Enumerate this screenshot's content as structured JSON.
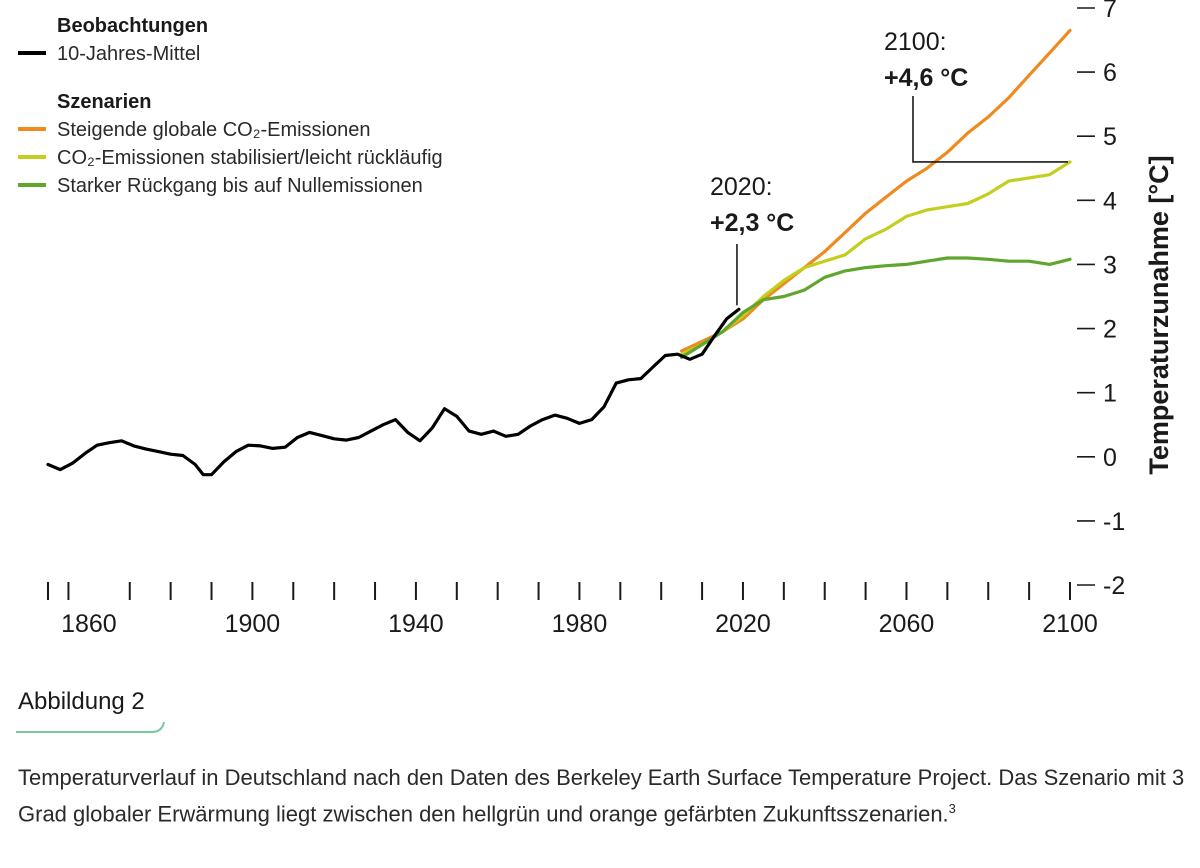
{
  "chart_data": {
    "type": "line",
    "xlabel": "",
    "ylabel": "Temperaturzunahme [°C]",
    "xlim": [
      1850,
      2100
    ],
    "ylim": [
      -2,
      7
    ],
    "x_ticks": [
      1850,
      1855,
      1870,
      1880,
      1890,
      1900,
      1910,
      1920,
      1930,
      1940,
      1950,
      1960,
      1970,
      1980,
      1990,
      2000,
      2010,
      2020,
      2030,
      2040,
      2050,
      2060,
      2070,
      2080,
      2090,
      2100
    ],
    "x_tick_labels": [
      {
        "x": 1860,
        "label": "1860"
      },
      {
        "x": 1900,
        "label": "1900"
      },
      {
        "x": 1940,
        "label": "1940"
      },
      {
        "x": 1980,
        "label": "1980"
      },
      {
        "x": 2020,
        "label": "2020"
      },
      {
        "x": 2060,
        "label": "2060"
      },
      {
        "x": 2100,
        "label": "2100"
      }
    ],
    "y_ticks": [
      {
        "y": 7,
        "label": "7"
      },
      {
        "y": 6,
        "label": "6"
      },
      {
        "y": 5,
        "label": "5"
      },
      {
        "y": 4,
        "label": "4"
      },
      {
        "y": 3,
        "label": "3"
      },
      {
        "y": 2,
        "label": "2"
      },
      {
        "y": 1,
        "label": "1"
      },
      {
        "y": 0,
        "label": "0"
      },
      {
        "y": -1,
        "label": "-1"
      },
      {
        "y": -2,
        "label": "-2"
      }
    ],
    "legend": {
      "position": "top-left",
      "groups": [
        {
          "title": "Beobachtungen",
          "entries": [
            {
              "label": "10-Jahres-Mittel",
              "color": "#000000"
            }
          ]
        },
        {
          "title": "Szenarien",
          "entries": [
            {
              "label": "Steigende globale CO₂-Emissionen",
              "color": "#ef8a1f"
            },
            {
              "label": "CO₂-Emissionen stabilisiert/leicht rückläufig",
              "color": "#c3cf1e"
            },
            {
              "label": "Starker Rückgang bis auf Nullemissionen",
              "color": "#5fa62e"
            }
          ]
        }
      ]
    },
    "series": [
      {
        "name": "10-Jahres-Mittel",
        "color": "#000000",
        "x": [
          1850,
          1853,
          1856,
          1859,
          1862,
          1865,
          1868,
          1871,
          1874,
          1877,
          1880,
          1883,
          1886,
          1888,
          1890,
          1893,
          1896,
          1899,
          1902,
          1905,
          1908,
          1911,
          1914,
          1917,
          1920,
          1923,
          1926,
          1929,
          1932,
          1935,
          1938,
          1941,
          1944,
          1947,
          1950,
          1953,
          1956,
          1959,
          1962,
          1965,
          1968,
          1971,
          1974,
          1977,
          1980,
          1983,
          1986,
          1989,
          1992,
          1995,
          1998,
          2001,
          2004,
          2007,
          2010,
          2013,
          2016,
          2019
        ],
        "y": [
          -0.12,
          -0.2,
          -0.1,
          0.05,
          0.18,
          0.22,
          0.25,
          0.17,
          0.12,
          0.08,
          0.04,
          0.02,
          -0.12,
          -0.28,
          -0.28,
          -0.08,
          0.08,
          0.18,
          0.17,
          0.13,
          0.15,
          0.3,
          0.38,
          0.33,
          0.28,
          0.26,
          0.3,
          0.4,
          0.5,
          0.58,
          0.38,
          0.25,
          0.45,
          0.75,
          0.63,
          0.4,
          0.35,
          0.4,
          0.32,
          0.35,
          0.48,
          0.58,
          0.65,
          0.6,
          0.52,
          0.58,
          0.78,
          1.15,
          1.2,
          1.22,
          1.4,
          1.58,
          1.6,
          1.52,
          1.6,
          1.88,
          2.15,
          2.3
        ]
      },
      {
        "name": "Steigende globale CO₂-Emissionen",
        "color": "#ef8a1f",
        "x": [
          2005,
          2010,
          2015,
          2020,
          2025,
          2030,
          2035,
          2040,
          2045,
          2050,
          2055,
          2060,
          2065,
          2070,
          2075,
          2080,
          2085,
          2090,
          2095,
          2100
        ],
        "y": [
          1.65,
          1.8,
          1.95,
          2.15,
          2.45,
          2.7,
          2.95,
          3.2,
          3.5,
          3.8,
          4.05,
          4.3,
          4.5,
          4.75,
          5.05,
          5.3,
          5.6,
          5.95,
          6.3,
          6.65
        ]
      },
      {
        "name": "CO₂-Emissionen stabilisiert/leicht rückläufig",
        "color": "#c3cf1e",
        "x": [
          2005,
          2010,
          2015,
          2020,
          2025,
          2030,
          2035,
          2040,
          2045,
          2050,
          2055,
          2060,
          2065,
          2070,
          2075,
          2080,
          2085,
          2090,
          2095,
          2100
        ],
        "y": [
          1.6,
          1.75,
          1.95,
          2.2,
          2.5,
          2.75,
          2.95,
          3.05,
          3.15,
          3.4,
          3.55,
          3.75,
          3.85,
          3.9,
          3.95,
          4.1,
          4.3,
          4.35,
          4.4,
          4.6
        ]
      },
      {
        "name": "Starker Rückgang bis auf Nullemissionen",
        "color": "#5fa62e",
        "x": [
          2005,
          2010,
          2015,
          2020,
          2025,
          2030,
          2035,
          2040,
          2045,
          2050,
          2055,
          2060,
          2065,
          2070,
          2075,
          2080,
          2085,
          2090,
          2095,
          2100
        ],
        "y": [
          1.55,
          1.75,
          1.95,
          2.25,
          2.45,
          2.5,
          2.6,
          2.8,
          2.9,
          2.95,
          2.98,
          3.0,
          3.05,
          3.1,
          3.1,
          3.08,
          3.05,
          3.05,
          3.0,
          3.08
        ]
      }
    ],
    "annotations": [
      {
        "year_label": "2020:",
        "value_label": "+2,3 °C",
        "x": 2020,
        "y": 2.3
      },
      {
        "year_label": "2100:",
        "value_label": "+4,6 °C",
        "x": 2100,
        "y": 4.6
      }
    ]
  },
  "caption": {
    "label": "Abbildung 2",
    "text": "Temperaturverlauf in Deutschland nach den Daten des Berkeley Earth Surface Temperature Project. Das Szenario mit 3 Grad globaler Erwärmung liegt zwischen den hellgrün und orange gefärbten Zukunftsszenarien.",
    "footnote": "3"
  }
}
